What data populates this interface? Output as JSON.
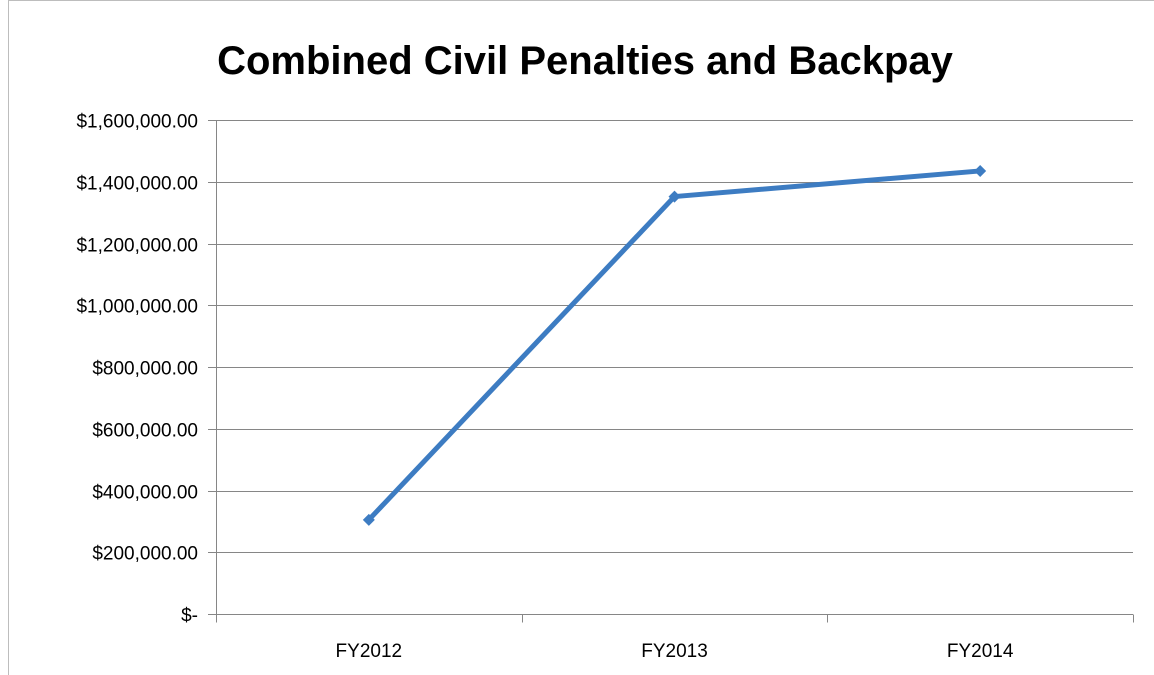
{
  "chart_data": {
    "type": "line",
    "title": "Combined Civil Penalties and Backpay",
    "xlabel": "",
    "ylabel": "",
    "categories": [
      "FY2012",
      "FY2013",
      "FY2014"
    ],
    "series": [
      {
        "values": [
          305000,
          1352000,
          1435000
        ],
        "color": "#3d7cc2",
        "marker": "diamond"
      }
    ],
    "ylim": [
      0,
      1600000
    ],
    "y_ticks": [
      {
        "value": 0,
        "label": "$-"
      },
      {
        "value": 200000,
        "label": "$200,000.00"
      },
      {
        "value": 400000,
        "label": "$400,000.00"
      },
      {
        "value": 600000,
        "label": "$600,000.00"
      },
      {
        "value": 800000,
        "label": "$800,000.00"
      },
      {
        "value": 1000000,
        "label": "$1,000,000.00"
      },
      {
        "value": 1200000,
        "label": "$1,200,000.00"
      },
      {
        "value": 1400000,
        "label": "$1,400,000.00"
      },
      {
        "value": 1600000,
        "label": "$1,600,000.00"
      }
    ],
    "grid": true,
    "legend": "none",
    "colors": {
      "gridline": "#868686",
      "axis": "#868686"
    }
  }
}
